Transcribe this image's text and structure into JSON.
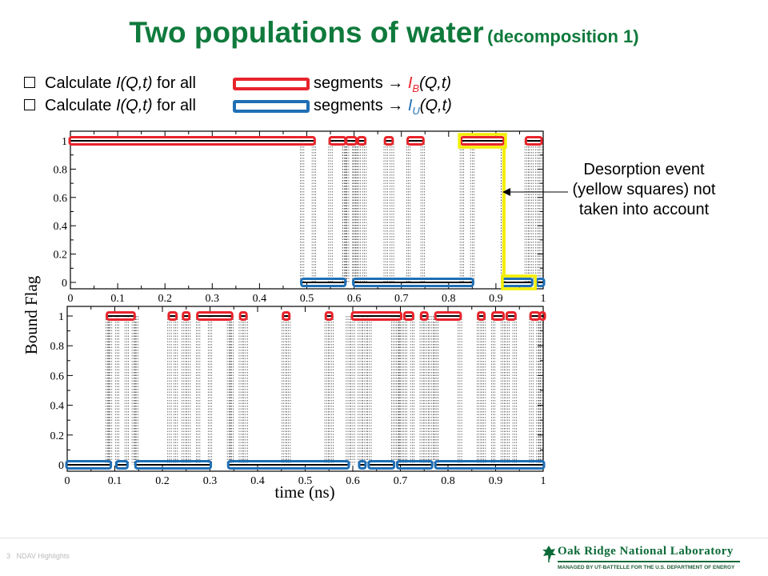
{
  "title": {
    "main": "Two populations of water",
    "sub": "(decomposition 1)"
  },
  "bullets": [
    {
      "pre": "Calculate ",
      "func": "I(Q,t)",
      "mid": " for all",
      "after": "segments",
      "arrow": "→",
      "rhs_letter": "I",
      "rhs_sub": "B",
      "rhs_tail": "(Q,t)",
      "color": "#e8242b"
    },
    {
      "pre": "Calculate ",
      "func": "I(Q,t)",
      "mid": " for all",
      "after": "segments",
      "arrow": "→",
      "rhs_letter": "I",
      "rhs_sub": "U",
      "rhs_tail": "(Q,t)",
      "color": "#1f6fb5"
    }
  ],
  "annotation": "Desorption event (yellow squares) not taken into account",
  "footer": {
    "page": "3",
    "text": "NDAV Highlights",
    "org": "Oak Ridge National Laboratory",
    "org_sub": "MANAGED BY UT-BATTELLE FOR THE U.S. DEPARTMENT OF ENERGY"
  },
  "colors": {
    "bound": "#e8242b",
    "unbound": "#1f6fb5",
    "highlight": "#f3ee00",
    "title": "#0f7a3c"
  },
  "chart_data": [
    {
      "type": "line",
      "xlabel": "",
      "ylabel": "Bound Flag",
      "xlim": [
        0,
        1
      ],
      "ylim": [
        0,
        1
      ],
      "xticks": [
        "0",
        "0.1",
        "0.2",
        "0.3",
        "0.4",
        "0.5",
        "0.6",
        "0.7",
        "0.8",
        "0.9",
        "1"
      ],
      "yticks": [
        "0",
        "0.2",
        "0.4",
        "0.6",
        "0.8",
        "1"
      ],
      "bound_segments": [
        [
          0.0,
          0.515
        ],
        [
          0.55,
          0.58
        ],
        [
          0.585,
          0.603
        ],
        [
          0.61,
          0.622
        ],
        [
          0.667,
          0.68
        ],
        [
          0.715,
          0.745
        ],
        [
          0.828,
          0.915
        ],
        [
          0.965,
          0.995
        ]
      ],
      "unbound_segments": [
        [
          0.49,
          0.58
        ],
        [
          0.6,
          0.85
        ],
        [
          0.915,
          0.975
        ],
        [
          0.988,
          1.0
        ]
      ],
      "highlight_segments": [
        [
          0.826,
          0.917,
          1
        ],
        [
          0.917,
          0.98,
          0
        ]
      ]
    },
    {
      "type": "line",
      "xlabel": "time (ns)",
      "ylabel": "",
      "xlim": [
        0,
        1
      ],
      "ylim": [
        0,
        1
      ],
      "xticks": [
        "0",
        "0.1",
        "0.2",
        "0.3",
        "0.4",
        "0.5",
        "0.6",
        "0.7",
        "0.8",
        "0.9",
        "1"
      ],
      "yticks": [
        "0",
        "0.2",
        "0.4",
        "0.6",
        "0.8",
        "1"
      ],
      "bound_segments": [
        [
          0.085,
          0.14
        ],
        [
          0.215,
          0.228
        ],
        [
          0.245,
          0.255
        ],
        [
          0.275,
          0.345
        ],
        [
          0.365,
          0.375
        ],
        [
          0.455,
          0.465
        ],
        [
          0.545,
          0.555
        ],
        [
          0.6,
          0.7
        ],
        [
          0.71,
          0.725
        ],
        [
          0.745,
          0.755
        ],
        [
          0.775,
          0.825
        ],
        [
          0.865,
          0.875
        ],
        [
          0.895,
          0.915
        ],
        [
          0.925,
          0.94
        ],
        [
          0.975,
          0.99
        ],
        [
          0.995,
          1.0
        ]
      ],
      "unbound_segments": [
        [
          0.0,
          0.09
        ],
        [
          0.105,
          0.125
        ],
        [
          0.145,
          0.3
        ],
        [
          0.34,
          0.59
        ],
        [
          0.615,
          0.625
        ],
        [
          0.635,
          0.685
        ],
        [
          0.695,
          0.765
        ],
        [
          0.775,
          1.0
        ]
      ]
    }
  ]
}
